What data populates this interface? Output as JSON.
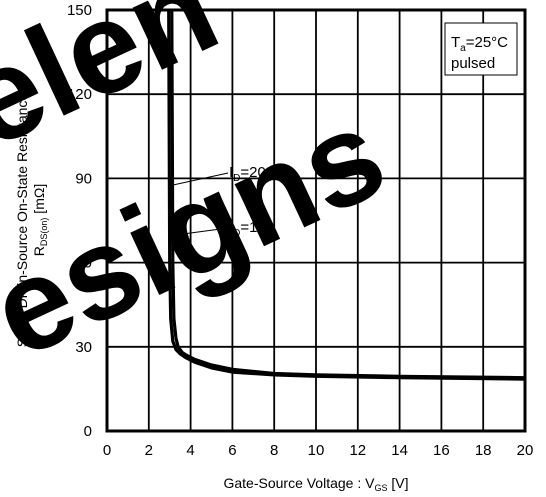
{
  "watermark": {
    "lines": [
      "elen",
      "esigns"
    ],
    "color": "#000000"
  },
  "chart_data": {
    "type": "line",
    "xlabel": "Gate-Source Voltage : V",
    "xlabel_sub": "GS",
    "xlabel_unit": " [V]",
    "ylabel_line1": "Static Drain-Source On-State Resistance",
    "ylabel_line2_main": "R",
    "ylabel_line2_sub": "DS(on)",
    "ylabel_line2_unit": " [mΩ]",
    "xlim": [
      0,
      20
    ],
    "ylim": [
      0,
      150
    ],
    "xticks": [
      0,
      2,
      4,
      6,
      8,
      10,
      12,
      14,
      16,
      18,
      20
    ],
    "yticks": [
      0,
      30,
      60,
      90,
      120,
      150
    ],
    "xtick_labels": [
      "0",
      "2",
      "4",
      "6",
      "8",
      "10",
      "12",
      "14",
      "16",
      "18",
      "20"
    ],
    "ytick_labels": [
      "0",
      "30",
      "60",
      "90",
      "120",
      "150"
    ],
    "grid": true,
    "legend_box": {
      "line1_main": "T",
      "line1_sub": "a",
      "line1_rest": "=25°C",
      "line2": "pulsed",
      "placement": "top-right"
    },
    "series": [
      {
        "label_main": "I",
        "label_sub": "D",
        "label_rest": "=20A",
        "x": [
          3.1,
          3.15,
          3.2,
          3.3,
          3.4,
          3.6,
          3.8,
          4.2,
          5,
          6,
          8,
          10,
          14,
          20
        ],
        "y": [
          150,
          60,
          40,
          33,
          30,
          28,
          27,
          25.5,
          23.5,
          22,
          20.5,
          20,
          19.5,
          19
        ]
      },
      {
        "label_main": "I",
        "label_sub": "D",
        "label_rest": "=10A",
        "x": [
          2.95,
          3.0,
          3.05,
          3.15,
          3.3,
          3.5,
          3.8,
          4.2,
          5,
          6,
          8,
          10,
          14,
          20
        ],
        "y": [
          150,
          60,
          40,
          32,
          29,
          27.5,
          26,
          24.5,
          22.5,
          21,
          20,
          19.5,
          19,
          18.5
        ]
      }
    ]
  }
}
